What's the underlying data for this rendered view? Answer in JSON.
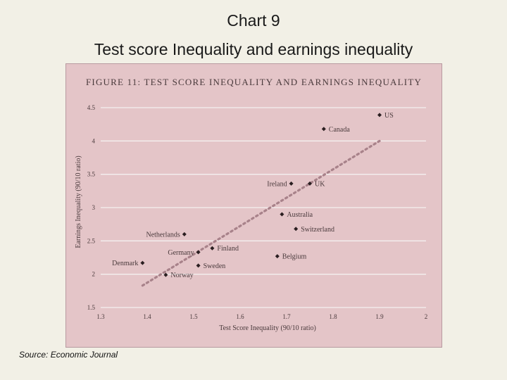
{
  "slide": {
    "title": "Chart 9",
    "subtitle": "Test score Inequality and earnings inequality",
    "source": "Source: Economic Journal"
  },
  "colors": {
    "panel": "#e4c5c8",
    "gridline": "#f4f0f0",
    "point": "#2a1e20",
    "trend": "#a8828a",
    "text": "#4a3a3c"
  },
  "chart_data": {
    "type": "scatter",
    "title": "FIGURE 11: TEST SCORE INEQUALITY AND EARNINGS INEQUALITY",
    "xlabel": "Test Score Inequality (90/10 ratio)",
    "ylabel": "Earnings Inequality (90/10 ratio)",
    "xlim": [
      1.3,
      2.0
    ],
    "ylim": [
      1.5,
      4.5
    ],
    "xticks": [
      "1.3",
      "1.4",
      "1.5",
      "1.6",
      "1.7",
      "1.8",
      "1.9",
      "2"
    ],
    "yticks": [
      "1.5",
      "2",
      "2.5",
      "3",
      "3.5",
      "4",
      "4.5"
    ],
    "grid": "horizontal",
    "points": [
      {
        "label": "US",
        "x": 1.9,
        "y": 4.39,
        "label_side": "right"
      },
      {
        "label": "Canada",
        "x": 1.78,
        "y": 4.18,
        "label_side": "right"
      },
      {
        "label": "Ireland",
        "x": 1.71,
        "y": 3.36,
        "label_side": "left"
      },
      {
        "label": "UK",
        "x": 1.75,
        "y": 3.36,
        "label_side": "right"
      },
      {
        "label": "Australia",
        "x": 1.69,
        "y": 2.9,
        "label_side": "right"
      },
      {
        "label": "Switzerland",
        "x": 1.72,
        "y": 2.68,
        "label_side": "right"
      },
      {
        "label": "Netherlands",
        "x": 1.48,
        "y": 2.6,
        "label_side": "left"
      },
      {
        "label": "Finland",
        "x": 1.54,
        "y": 2.39,
        "label_side": "right"
      },
      {
        "label": "Germany",
        "x": 1.51,
        "y": 2.33,
        "label_side": "left"
      },
      {
        "label": "Belgium",
        "x": 1.68,
        "y": 2.27,
        "label_side": "right"
      },
      {
        "label": "Denmark",
        "x": 1.39,
        "y": 2.17,
        "label_side": "left"
      },
      {
        "label": "Sweden",
        "x": 1.51,
        "y": 2.13,
        "label_side": "right"
      },
      {
        "label": "Norway",
        "x": 1.44,
        "y": 1.99,
        "label_side": "right"
      }
    ],
    "trendline": {
      "x": [
        1.39,
        1.9
      ],
      "y": [
        1.83,
        4.0
      ]
    }
  }
}
